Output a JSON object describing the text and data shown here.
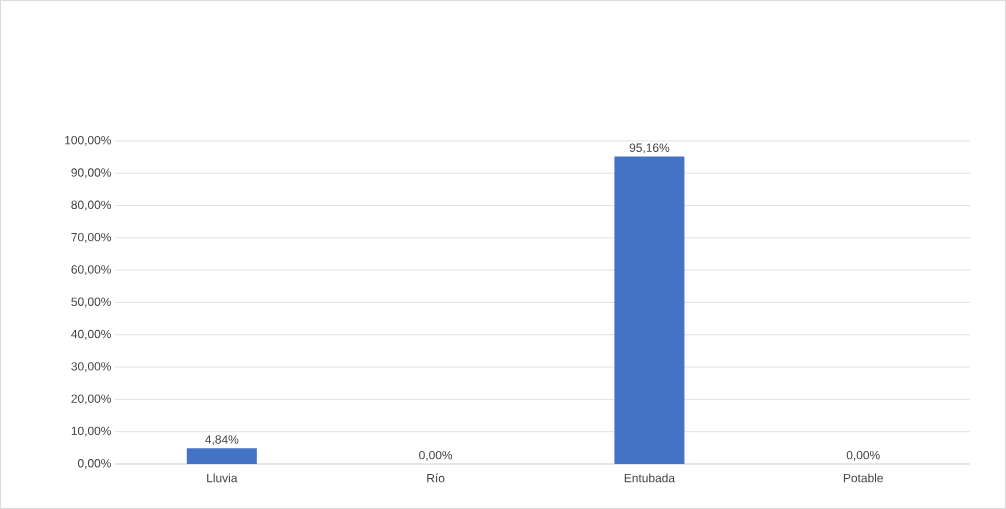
{
  "chart_data": {
    "type": "bar",
    "categories": [
      "Lluvia",
      "Río",
      "Entubada",
      "Potable"
    ],
    "values": [
      4.84,
      0,
      95.16,
      0
    ],
    "value_labels": [
      "4,84%",
      "0,00%",
      "95,16%",
      "0,00%"
    ],
    "color": "#4472c4",
    "ylim": [
      0,
      100
    ],
    "yticks": [
      {
        "value": 0,
        "label": "0,00%"
      },
      {
        "value": 10,
        "label": "10,00%"
      },
      {
        "value": 20,
        "label": "20,00%"
      },
      {
        "value": 30,
        "label": "30,00%"
      },
      {
        "value": 40,
        "label": "40,00%"
      },
      {
        "value": 50,
        "label": "50,00%"
      },
      {
        "value": 60,
        "label": "60,00%"
      },
      {
        "value": 70,
        "label": "70,00%"
      },
      {
        "value": 80,
        "label": "80,00%"
      },
      {
        "value": 90,
        "label": "90,00%"
      },
      {
        "value": 100,
        "label": "100,00%"
      }
    ],
    "grid": "y"
  }
}
